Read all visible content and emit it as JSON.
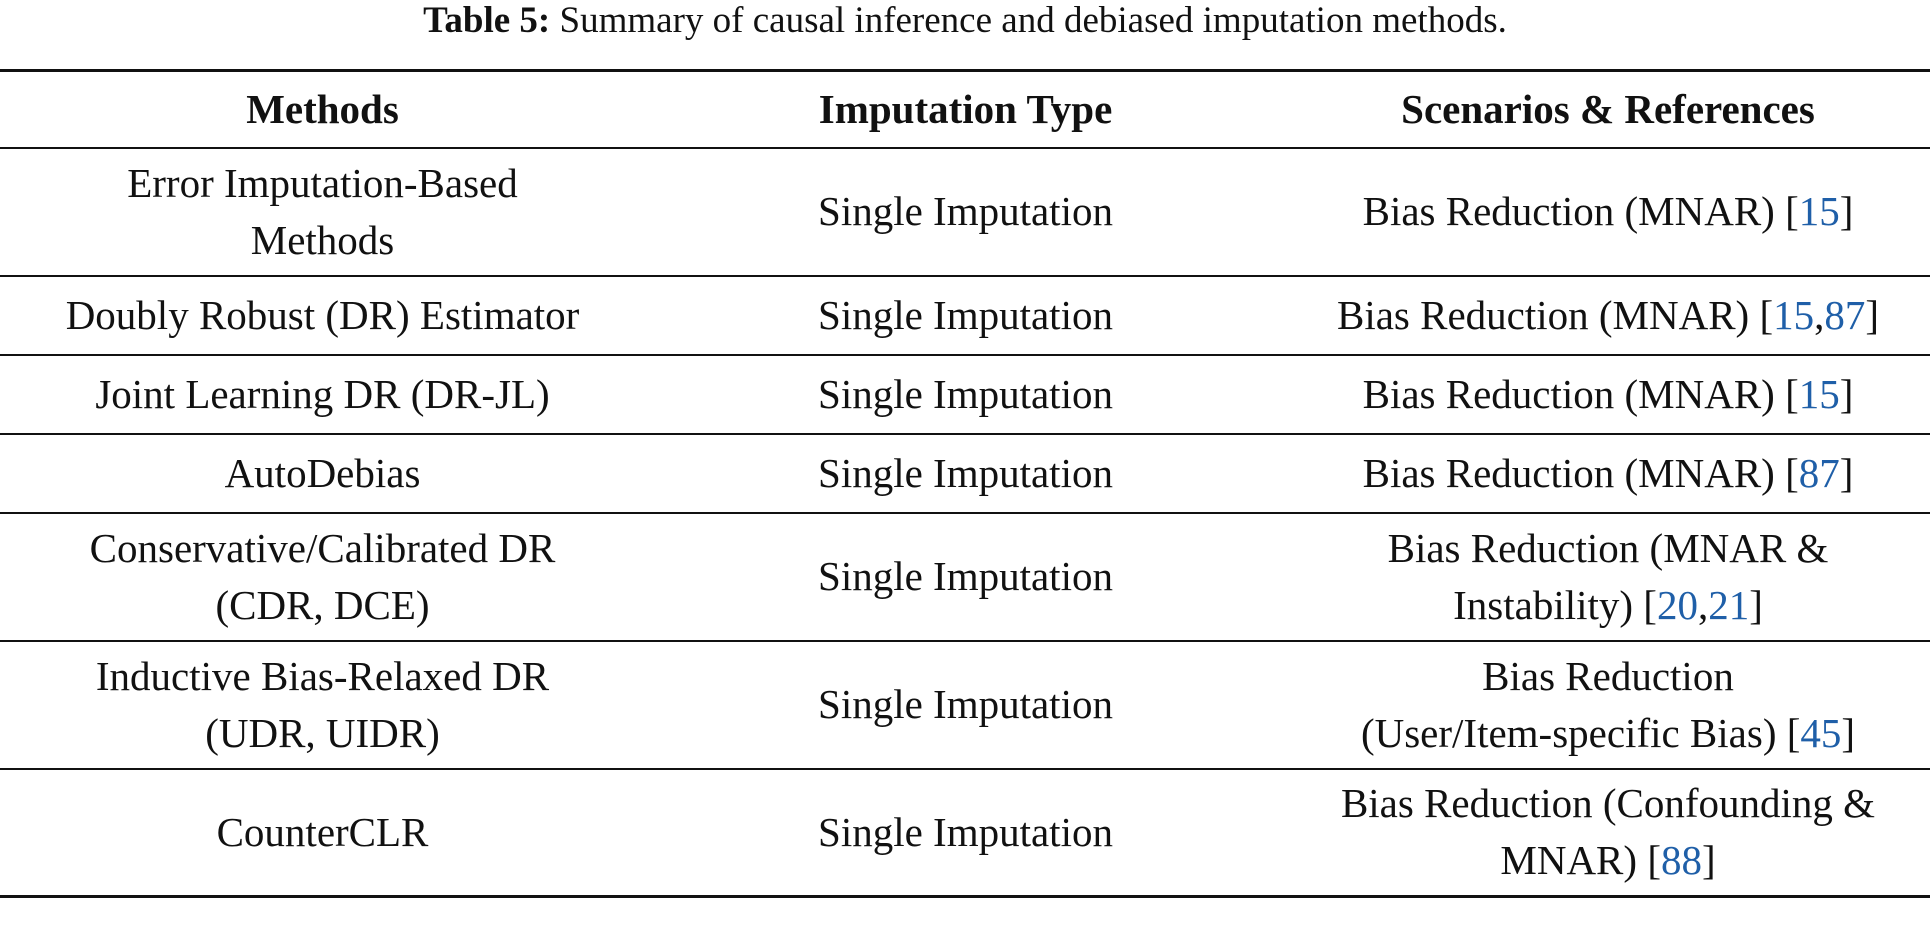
{
  "caption": {
    "label": "Table 5:",
    "text": " Summary of causal inference and debiased imputation methods."
  },
  "colors": {
    "text": "#111111",
    "reference_link": "#1f5fa8",
    "rule": "#111111"
  },
  "headers": {
    "methods": "Methods",
    "imputation_type": "Imputation Type",
    "scenarios": "Scenarios & References"
  },
  "rows": [
    {
      "method": [
        "Error Imputation-Based",
        "Methods"
      ],
      "imputation_type": "Single Imputation",
      "scenario": [
        "Bias Reduction (MNAR) "
      ],
      "refs": [
        "15"
      ]
    },
    {
      "method": [
        "Doubly Robust (DR) Estimator"
      ],
      "imputation_type": "Single Imputation",
      "scenario": [
        "Bias Reduction (MNAR) "
      ],
      "refs": [
        "15",
        "87"
      ]
    },
    {
      "method": [
        "Joint Learning DR (DR-JL)"
      ],
      "imputation_type": "Single Imputation",
      "scenario": [
        "Bias Reduction (MNAR) "
      ],
      "refs": [
        "15"
      ]
    },
    {
      "method": [
        "AutoDebias"
      ],
      "imputation_type": "Single Imputation",
      "scenario": [
        "Bias Reduction (MNAR) "
      ],
      "refs": [
        "87"
      ]
    },
    {
      "method": [
        "Conservative/Calibrated DR",
        "(CDR, DCE)"
      ],
      "imputation_type": "Single Imputation",
      "scenario": [
        "Bias Reduction (MNAR &",
        "Instability) "
      ],
      "refs": [
        "20",
        "21"
      ]
    },
    {
      "method": [
        "Inductive Bias-Relaxed DR",
        "(UDR, UIDR)"
      ],
      "imputation_type": "Single Imputation",
      "scenario": [
        "Bias Reduction",
        "(User/Item-specific Bias) "
      ],
      "refs": [
        "45"
      ]
    },
    {
      "method": [
        "CounterCLR"
      ],
      "imputation_type": "Single Imputation",
      "scenario": [
        "Bias Reduction (Confounding &",
        "MNAR) "
      ],
      "refs": [
        "88"
      ]
    }
  ]
}
